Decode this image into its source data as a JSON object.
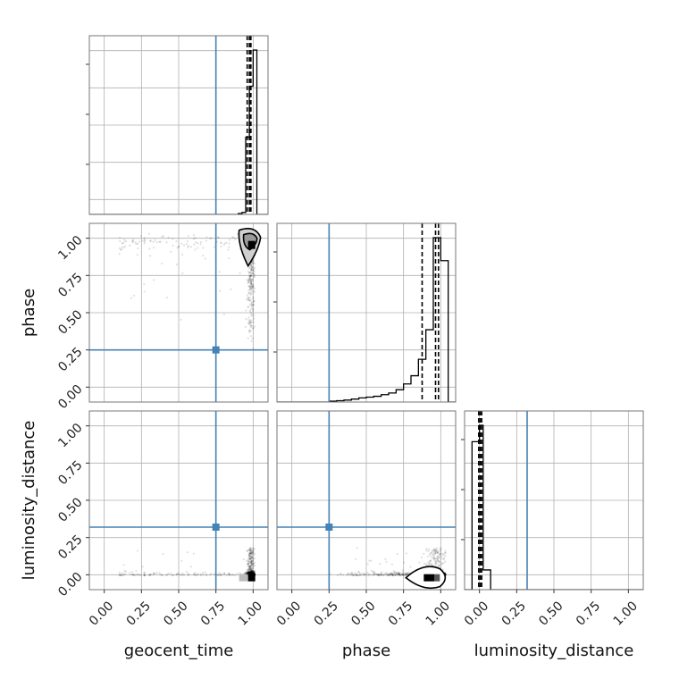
{
  "chart_data": {
    "type": "corner",
    "parameters": [
      "geocent_time",
      "phase",
      "luminosity_distance"
    ],
    "axis_range": [
      -0.1,
      1.1
    ],
    "ticks": [
      0.0,
      0.25,
      0.5,
      0.75,
      1.0
    ],
    "tick_labels": [
      "0.00",
      "0.25",
      "0.50",
      "0.75",
      "1.00"
    ],
    "grid": true,
    "colors": {
      "truth": "#4682b4",
      "hist": "#000000",
      "points": "#000000",
      "grid": "#b0b0b0"
    },
    "truths": {
      "geocent_time": 0.75,
      "phase": 0.25,
      "luminosity_distance": 0.32
    },
    "histograms": {
      "geocent_time": {
        "edges": [
          0.9,
          0.925,
          0.95,
          0.975,
          1.0,
          1.025
        ],
        "values": [
          0.005,
          0.012,
          0.47,
          0.78,
          1.0
        ],
        "quantiles": [
          0.96,
          0.975,
          0.985
        ]
      },
      "phase": {
        "edges": [
          0.25,
          0.3,
          0.35,
          0.4,
          0.45,
          0.5,
          0.55,
          0.6,
          0.65,
          0.7,
          0.75,
          0.8,
          0.85,
          0.9,
          0.95,
          1.0,
          1.05
        ],
        "values": [
          0.005,
          0.008,
          0.012,
          0.018,
          0.025,
          0.03,
          0.035,
          0.045,
          0.055,
          0.075,
          0.11,
          0.16,
          0.26,
          0.44,
          1.0,
          0.86
        ],
        "quantiles": [
          0.875,
          0.965,
          0.985
        ]
      },
      "luminosity_distance": {
        "edges": [
          -0.05,
          0.0,
          0.025,
          0.075
        ],
        "values": [
          0.9,
          1.0,
          0.12
        ],
        "quantiles": [
          -0.005,
          0.005,
          0.015
        ]
      }
    },
    "scatter": [
      {
        "x": "geocent_time",
        "y": "phase",
        "contour_center": [
          0.99,
          0.97
        ]
      },
      {
        "x": "geocent_time",
        "y": "luminosity_distance",
        "contour_center": [
          0.99,
          -0.02
        ]
      },
      {
        "x": "phase",
        "y": "luminosity_distance",
        "contour_center": [
          0.97,
          -0.02
        ]
      }
    ]
  }
}
